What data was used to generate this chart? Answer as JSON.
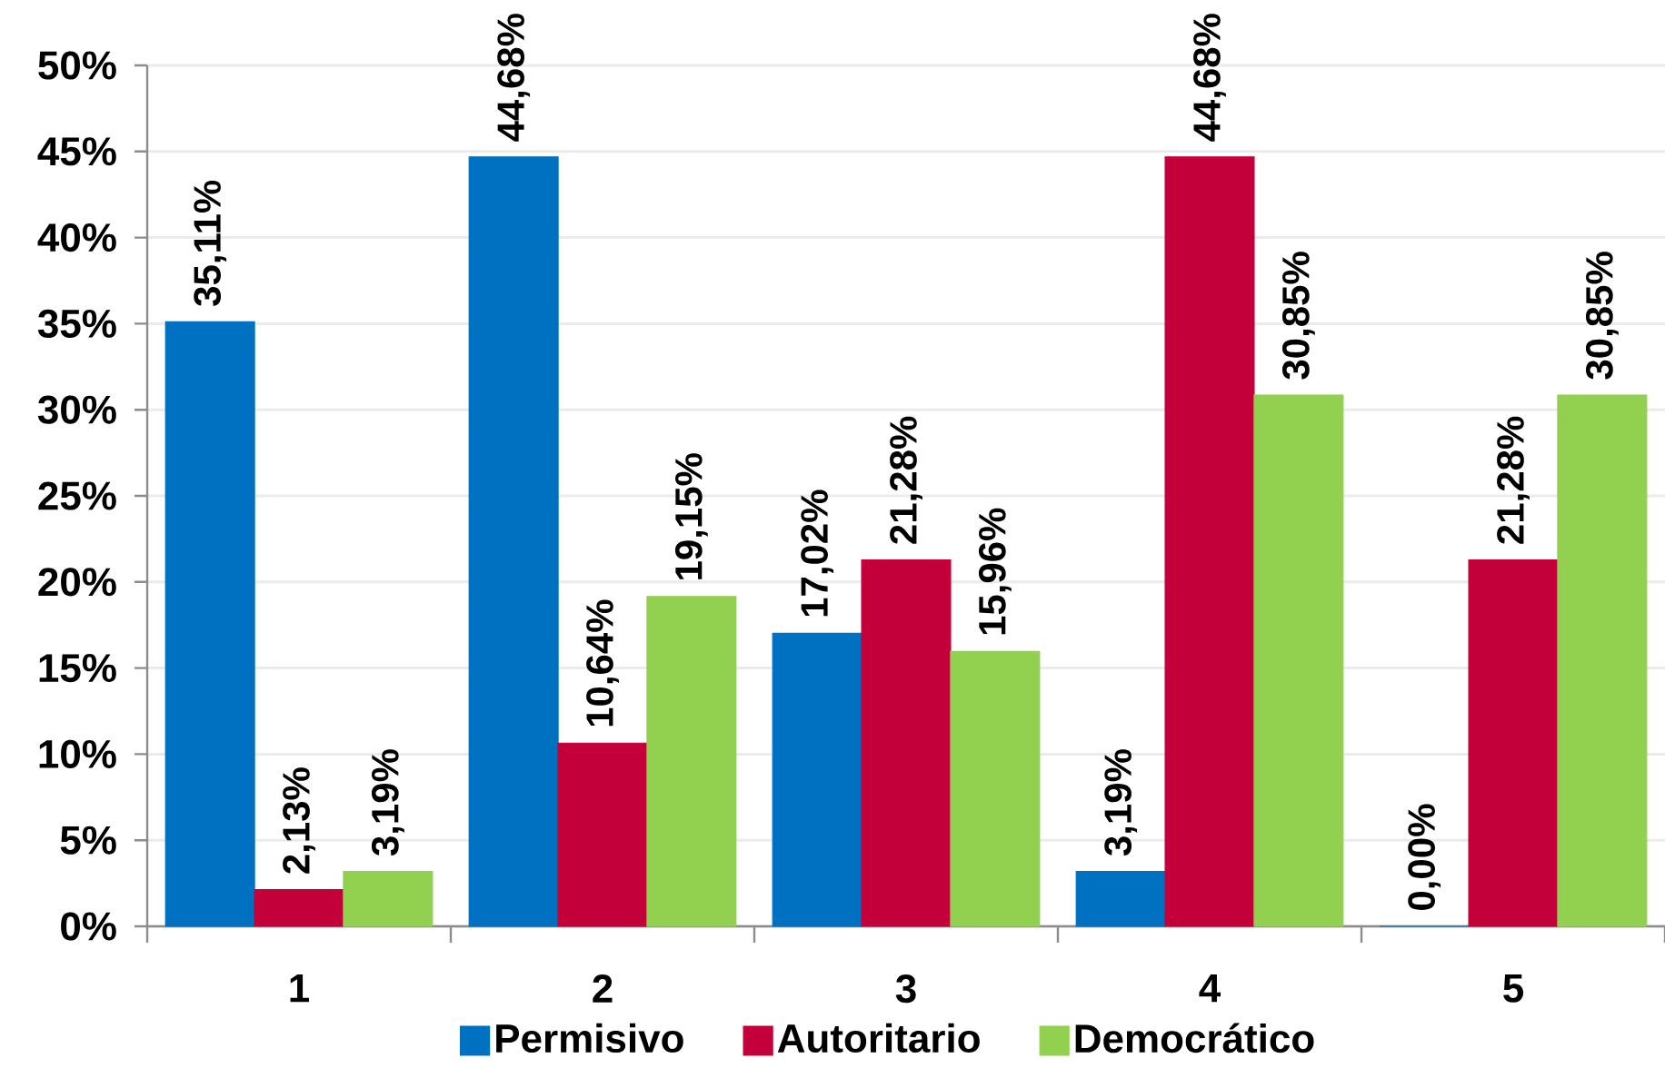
{
  "chart_data": {
    "type": "bar",
    "categories": [
      "1",
      "2",
      "3",
      "4",
      "5"
    ],
    "series": [
      {
        "name": "Permisivo",
        "color": "#0070c0",
        "values": [
          35.11,
          44.68,
          17.02,
          3.19,
          0.0
        ],
        "value_labels": [
          "35,11%",
          "44,68%",
          "17,02%",
          "3,19%",
          "0,00%"
        ]
      },
      {
        "name": "Autoritario",
        "color": "#c4003a",
        "values": [
          2.13,
          10.64,
          21.28,
          44.68,
          21.28
        ],
        "value_labels": [
          "2,13%",
          "10,64%",
          "21,28%",
          "44,68%",
          "21,28%"
        ]
      },
      {
        "name": "Democrático",
        "color": "#92d050",
        "values": [
          3.19,
          19.15,
          15.96,
          30.85,
          30.85
        ],
        "value_labels": [
          "3,19%",
          "19,15%",
          "15,96%",
          "30,85%",
          "30,85%"
        ]
      }
    ],
    "ylim": [
      0,
      50
    ],
    "yticks": [
      {
        "value": 0,
        "label": "0%"
      },
      {
        "value": 5,
        "label": "5%"
      },
      {
        "value": 10,
        "label": "10%"
      },
      {
        "value": 15,
        "label": "15%"
      },
      {
        "value": 20,
        "label": "20%"
      },
      {
        "value": 25,
        "label": "25%"
      },
      {
        "value": 30,
        "label": "30%"
      },
      {
        "value": 35,
        "label": "35%"
      },
      {
        "value": 40,
        "label": "40%"
      },
      {
        "value": 45,
        "label": "45%"
      },
      {
        "value": 50,
        "label": "50%"
      }
    ],
    "grid": "y",
    "legend": "bottom"
  }
}
